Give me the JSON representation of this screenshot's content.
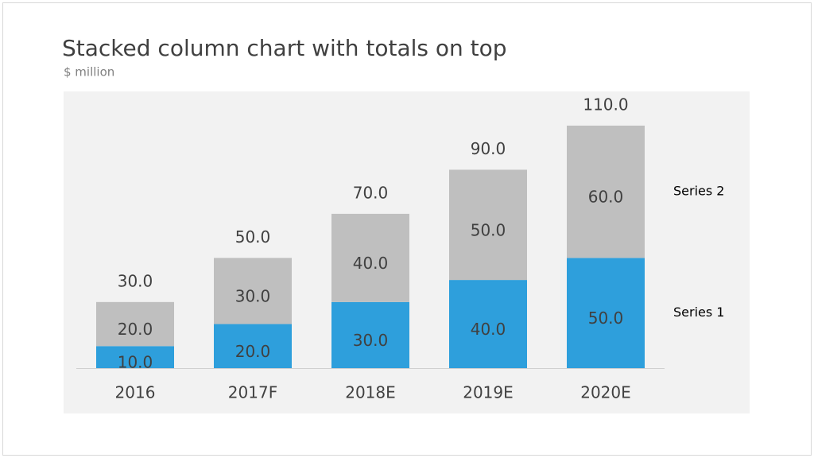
{
  "chart_data": {
    "type": "stacked_bar",
    "title": "Stacked column chart with totals on top",
    "subtitle": "$ million",
    "categories": [
      "2016",
      "2017F",
      "2018E",
      "2019E",
      "2020E"
    ],
    "series": [
      {
        "name": "Series 1",
        "color": "#2e9fdc",
        "values": [
          10,
          20,
          30,
          40,
          50
        ],
        "value_labels": [
          "10.0",
          "20.0",
          "30.0",
          "40.0",
          "50.0"
        ]
      },
      {
        "name": "Series 2",
        "color": "#bfbfbf",
        "values": [
          20,
          30,
          40,
          50,
          60
        ],
        "value_labels": [
          "20.0",
          "30.0",
          "40.0",
          "50.0",
          "60.0"
        ]
      }
    ],
    "totals": [
      30,
      50,
      70,
      90,
      110
    ],
    "total_labels": [
      "30.0",
      "50.0",
      "70.0",
      "90.0",
      "110.0"
    ]
  }
}
